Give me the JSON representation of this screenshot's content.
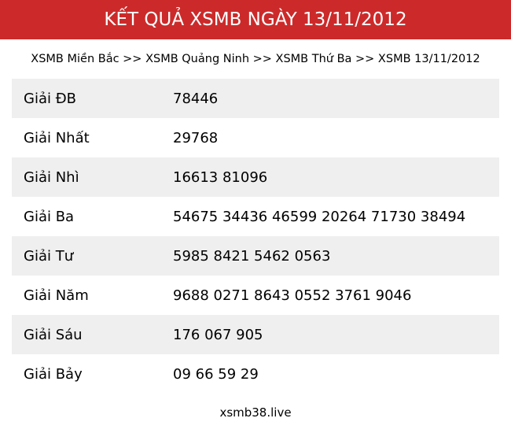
{
  "header": {
    "title": "KẾT QUẢ XSMB NGÀY 13/11/2012",
    "color": "#cc2a2a"
  },
  "breadcrumb": "XSMB Miền Bắc >> XSMB Quảng Ninh >> XSMB Thứ Ba >> XSMB 13/11/2012",
  "results": [
    {
      "label": "Giải ĐB",
      "value": "78446"
    },
    {
      "label": "Giải Nhất",
      "value": "29768"
    },
    {
      "label": "Giải Nhì",
      "value": "16613 81096"
    },
    {
      "label": "Giải Ba",
      "value": "54675 34436 46599 20264 71730 38494"
    },
    {
      "label": "Giải Tư",
      "value": "5985 8421 5462 0563"
    },
    {
      "label": "Giải Năm",
      "value": "9688 0271 8643 0552 3761 9046"
    },
    {
      "label": "Giải Sáu",
      "value": "176 067 905"
    },
    {
      "label": "Giải Bảy",
      "value": "09 66 59 29"
    }
  ],
  "footer": "xsmb38.live"
}
